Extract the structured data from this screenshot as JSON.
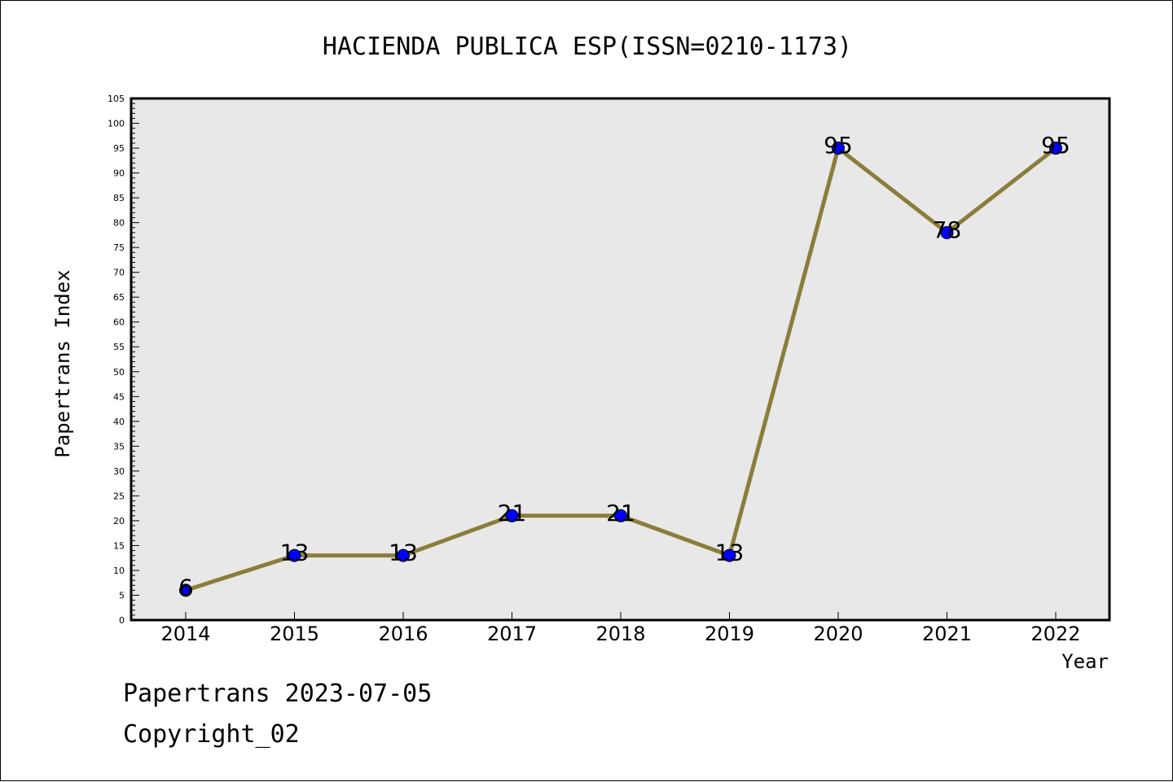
{
  "chart_data": {
    "type": "line",
    "title": "HACIENDA PUBLICA ESP(ISSN=0210-1173)",
    "xlabel": "Year",
    "ylabel": "Papertrans Index",
    "categories": [
      "2014",
      "2015",
      "2016",
      "2017",
      "2018",
      "2019",
      "2020",
      "2021",
      "2022"
    ],
    "series": [
      {
        "values": [
          6,
          13,
          13,
          21,
          21,
          13,
          95,
          78,
          95
        ]
      }
    ],
    "data_labels": [
      "6",
      "13",
      "13",
      "21",
      "21",
      "13",
      "95",
      "78",
      "95"
    ],
    "ylim": [
      0,
      105
    ],
    "yticks": [
      "0",
      "5",
      "10",
      "15",
      "20",
      "25",
      "30",
      "35",
      "40",
      "45",
      "50",
      "55",
      "60",
      "65",
      "70",
      "75",
      "80",
      "85",
      "90",
      "95",
      "100",
      "105"
    ],
    "grid": false,
    "line_color": "#8b7d3a",
    "marker_color": "#0000ff",
    "plot_background": "#e8e8e8"
  },
  "footer": {
    "line1": "Papertrans 2023-07-05",
    "line2": "Copyright_02"
  }
}
